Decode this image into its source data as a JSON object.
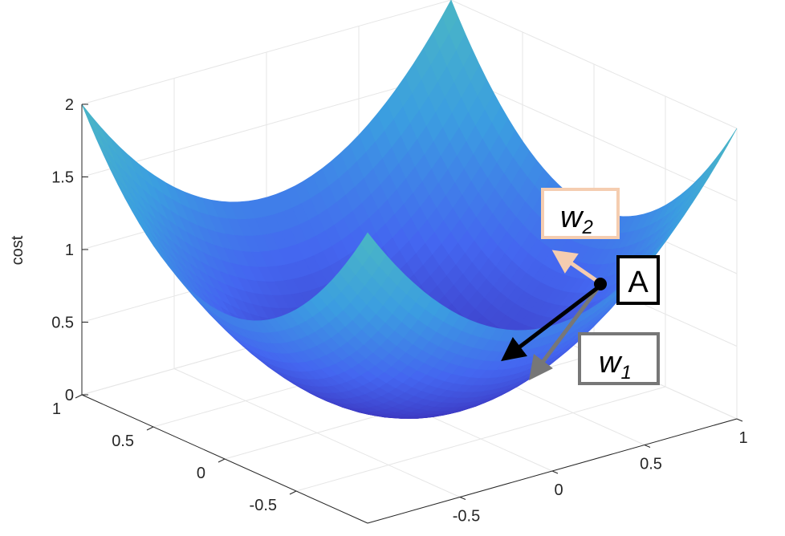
{
  "chart_data": {
    "type": "surface",
    "function": "cost = w1^2 + w2^2",
    "x": [
      -1,
      -0.75,
      -0.5,
      -0.25,
      0,
      0.25,
      0.5,
      0.75,
      1
    ],
    "y": [
      -1,
      -0.75,
      -0.5,
      -0.25,
      0,
      0.25,
      0.5,
      0.75,
      1
    ],
    "zlabel": "cost",
    "xlim": [
      -1,
      1
    ],
    "ylim": [
      -1,
      1
    ],
    "zlim": [
      0,
      2
    ],
    "x_ticks": [
      "-0.5",
      "0",
      "0.5",
      "1"
    ],
    "y_ticks": [
      "-0.5",
      "0",
      "0.5",
      "1"
    ],
    "z_ticks": [
      "0",
      "0.5",
      "1",
      "1.5",
      "2"
    ],
    "grid": true,
    "colormap": [
      "#3b2fb8",
      "#4466f0",
      "#3b9ee0",
      "#4ab7c4"
    ],
    "annotations": {
      "point_label": "A",
      "arrows": [
        {
          "label": "w",
          "subscript": "1",
          "color": "#777777"
        },
        {
          "label": "w",
          "subscript": "2",
          "color": "#f5cdb0"
        },
        {
          "label": "",
          "subscript": "",
          "color": "#000000"
        }
      ]
    }
  }
}
